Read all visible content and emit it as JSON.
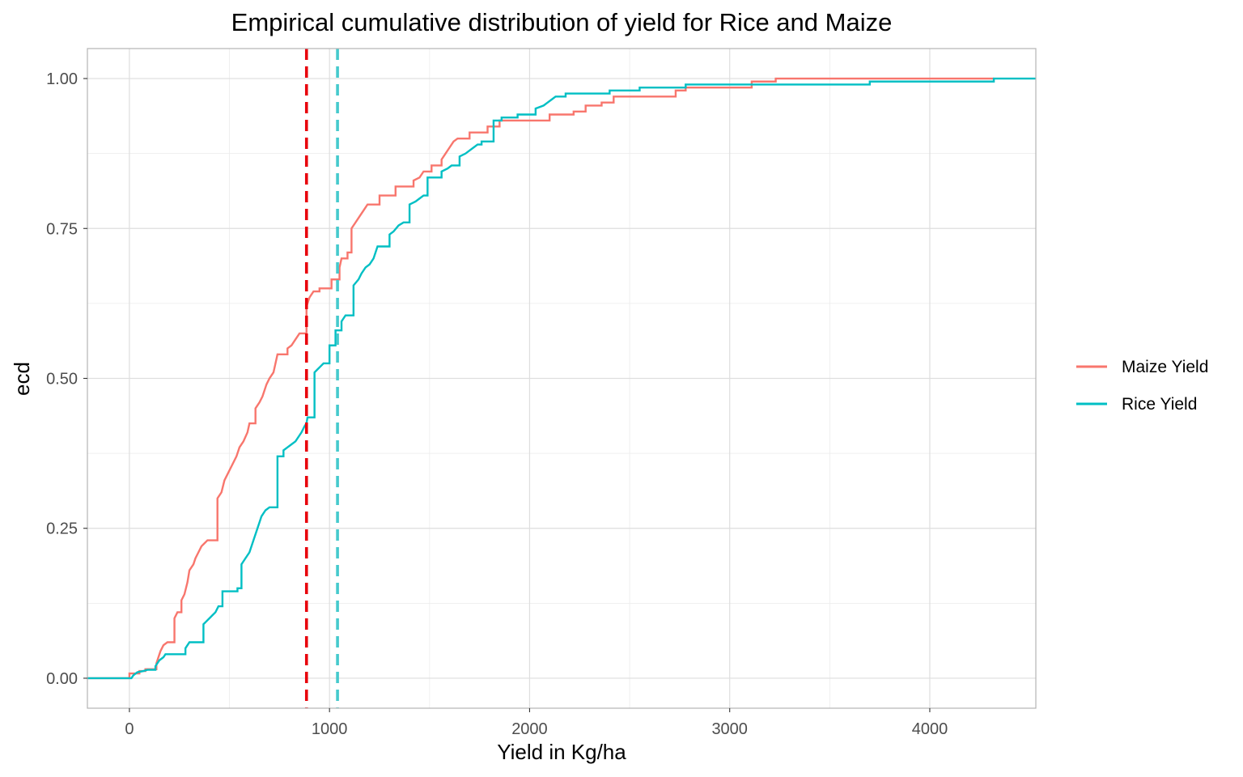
{
  "chart_data": {
    "type": "line",
    "subtype": "ecdf-step",
    "title": "Empirical cumulative distribution of yield for Rice and Maize",
    "xlabel": "Yield in Kg/ha",
    "ylabel": "ecd",
    "xlim": [
      -210,
      4530
    ],
    "ylim": [
      -0.05,
      1.05
    ],
    "x_ticks": [
      0,
      1000,
      2000,
      3000,
      4000
    ],
    "x_tick_labels": [
      "0",
      "1000",
      "2000",
      "3000",
      "4000"
    ],
    "y_ticks": [
      0,
      0.25,
      0.5,
      0.75,
      1.0
    ],
    "y_tick_labels": [
      "0.00",
      "0.25",
      "0.50",
      "0.75",
      "1.00"
    ],
    "grid": true,
    "legend_position": "right",
    "series": [
      {
        "name": "Maize Yield",
        "color": "#F8766D",
        "points": [
          [
            -210,
            0
          ],
          [
            0,
            0
          ],
          [
            0,
            0.008
          ],
          [
            50,
            0.008
          ],
          [
            50,
            0.012
          ],
          [
            80,
            0.012
          ],
          [
            80,
            0.015
          ],
          [
            135,
            0.015
          ],
          [
            135,
            0.025
          ],
          [
            145,
            0.035
          ],
          [
            155,
            0.045
          ],
          [
            170,
            0.055
          ],
          [
            190,
            0.06
          ],
          [
            225,
            0.06
          ],
          [
            225,
            0.1
          ],
          [
            240,
            0.11
          ],
          [
            260,
            0.11
          ],
          [
            260,
            0.13
          ],
          [
            275,
            0.14
          ],
          [
            290,
            0.16
          ],
          [
            300,
            0.18
          ],
          [
            320,
            0.19
          ],
          [
            330,
            0.2
          ],
          [
            345,
            0.21
          ],
          [
            360,
            0.22
          ],
          [
            375,
            0.225
          ],
          [
            390,
            0.23
          ],
          [
            440,
            0.23
          ],
          [
            440,
            0.3
          ],
          [
            460,
            0.31
          ],
          [
            475,
            0.33
          ],
          [
            490,
            0.34
          ],
          [
            505,
            0.35
          ],
          [
            520,
            0.36
          ],
          [
            535,
            0.37
          ],
          [
            550,
            0.385
          ],
          [
            570,
            0.395
          ],
          [
            590,
            0.41
          ],
          [
            600,
            0.425
          ],
          [
            630,
            0.425
          ],
          [
            630,
            0.45
          ],
          [
            650,
            0.46
          ],
          [
            665,
            0.47
          ],
          [
            685,
            0.49
          ],
          [
            700,
            0.5
          ],
          [
            720,
            0.51
          ],
          [
            730,
            0.525
          ],
          [
            740,
            0.54
          ],
          [
            790,
            0.54
          ],
          [
            790,
            0.55
          ],
          [
            810,
            0.555
          ],
          [
            830,
            0.565
          ],
          [
            850,
            0.575
          ],
          [
            885,
            0.575
          ],
          [
            885,
            0.62
          ],
          [
            900,
            0.635
          ],
          [
            920,
            0.645
          ],
          [
            950,
            0.645
          ],
          [
            950,
            0.65
          ],
          [
            1010,
            0.65
          ],
          [
            1010,
            0.665
          ],
          [
            1050,
            0.665
          ],
          [
            1050,
            0.685
          ],
          [
            1060,
            0.7
          ],
          [
            1090,
            0.7
          ],
          [
            1090,
            0.71
          ],
          [
            1110,
            0.71
          ],
          [
            1110,
            0.75
          ],
          [
            1130,
            0.76
          ],
          [
            1150,
            0.77
          ],
          [
            1170,
            0.78
          ],
          [
            1190,
            0.79
          ],
          [
            1250,
            0.79
          ],
          [
            1250,
            0.805
          ],
          [
            1330,
            0.805
          ],
          [
            1330,
            0.82
          ],
          [
            1420,
            0.82
          ],
          [
            1420,
            0.83
          ],
          [
            1450,
            0.835
          ],
          [
            1470,
            0.845
          ],
          [
            1510,
            0.845
          ],
          [
            1510,
            0.855
          ],
          [
            1560,
            0.855
          ],
          [
            1560,
            0.865
          ],
          [
            1580,
            0.875
          ],
          [
            1600,
            0.885
          ],
          [
            1620,
            0.895
          ],
          [
            1640,
            0.9
          ],
          [
            1700,
            0.9
          ],
          [
            1700,
            0.91
          ],
          [
            1790,
            0.91
          ],
          [
            1790,
            0.92
          ],
          [
            1850,
            0.92
          ],
          [
            1850,
            0.93
          ],
          [
            2100,
            0.93
          ],
          [
            2100,
            0.94
          ],
          [
            2220,
            0.94
          ],
          [
            2220,
            0.945
          ],
          [
            2280,
            0.945
          ],
          [
            2280,
            0.955
          ],
          [
            2360,
            0.955
          ],
          [
            2360,
            0.96
          ],
          [
            2420,
            0.96
          ],
          [
            2420,
            0.97
          ],
          [
            2730,
            0.97
          ],
          [
            2730,
            0.98
          ],
          [
            2780,
            0.98
          ],
          [
            2780,
            0.985
          ],
          [
            3110,
            0.985
          ],
          [
            3110,
            0.995
          ],
          [
            3230,
            0.995
          ],
          [
            3230,
            1.0
          ],
          [
            4320,
            1.0
          ]
        ]
      },
      {
        "name": "Rice Yield",
        "color": "#00BFC4",
        "points": [
          [
            -210,
            0
          ],
          [
            10,
            0
          ],
          [
            20,
            0.005
          ],
          [
            40,
            0.01
          ],
          [
            70,
            0.012
          ],
          [
            90,
            0.014
          ],
          [
            130,
            0.014
          ],
          [
            130,
            0.02
          ],
          [
            150,
            0.03
          ],
          [
            170,
            0.035
          ],
          [
            180,
            0.04
          ],
          [
            280,
            0.04
          ],
          [
            280,
            0.05
          ],
          [
            300,
            0.06
          ],
          [
            370,
            0.06
          ],
          [
            370,
            0.09
          ],
          [
            385,
            0.095
          ],
          [
            400,
            0.1
          ],
          [
            415,
            0.105
          ],
          [
            430,
            0.11
          ],
          [
            445,
            0.12
          ],
          [
            465,
            0.12
          ],
          [
            465,
            0.145
          ],
          [
            540,
            0.145
          ],
          [
            540,
            0.15
          ],
          [
            560,
            0.15
          ],
          [
            560,
            0.19
          ],
          [
            580,
            0.2
          ],
          [
            600,
            0.21
          ],
          [
            620,
            0.23
          ],
          [
            630,
            0.24
          ],
          [
            650,
            0.26
          ],
          [
            660,
            0.27
          ],
          [
            680,
            0.28
          ],
          [
            700,
            0.285
          ],
          [
            740,
            0.285
          ],
          [
            740,
            0.37
          ],
          [
            770,
            0.37
          ],
          [
            770,
            0.38
          ],
          [
            790,
            0.385
          ],
          [
            810,
            0.39
          ],
          [
            830,
            0.395
          ],
          [
            850,
            0.405
          ],
          [
            860,
            0.41
          ],
          [
            875,
            0.42
          ],
          [
            885,
            0.425
          ],
          [
            890,
            0.435
          ],
          [
            925,
            0.435
          ],
          [
            925,
            0.51
          ],
          [
            940,
            0.515
          ],
          [
            955,
            0.52
          ],
          [
            970,
            0.525
          ],
          [
            1000,
            0.525
          ],
          [
            1000,
            0.555
          ],
          [
            1030,
            0.555
          ],
          [
            1030,
            0.58
          ],
          [
            1060,
            0.58
          ],
          [
            1060,
            0.595
          ],
          [
            1080,
            0.605
          ],
          [
            1120,
            0.605
          ],
          [
            1120,
            0.655
          ],
          [
            1145,
            0.665
          ],
          [
            1160,
            0.675
          ],
          [
            1180,
            0.685
          ],
          [
            1200,
            0.69
          ],
          [
            1220,
            0.7
          ],
          [
            1240,
            0.72
          ],
          [
            1300,
            0.72
          ],
          [
            1300,
            0.74
          ],
          [
            1320,
            0.745
          ],
          [
            1345,
            0.755
          ],
          [
            1370,
            0.76
          ],
          [
            1400,
            0.76
          ],
          [
            1400,
            0.79
          ],
          [
            1430,
            0.795
          ],
          [
            1450,
            0.8
          ],
          [
            1470,
            0.805
          ],
          [
            1490,
            0.805
          ],
          [
            1490,
            0.835
          ],
          [
            1560,
            0.835
          ],
          [
            1560,
            0.845
          ],
          [
            1590,
            0.85
          ],
          [
            1610,
            0.855
          ],
          [
            1650,
            0.855
          ],
          [
            1650,
            0.87
          ],
          [
            1680,
            0.875
          ],
          [
            1700,
            0.88
          ],
          [
            1720,
            0.885
          ],
          [
            1740,
            0.89
          ],
          [
            1760,
            0.89
          ],
          [
            1760,
            0.895
          ],
          [
            1820,
            0.895
          ],
          [
            1820,
            0.93
          ],
          [
            1860,
            0.93
          ],
          [
            1860,
            0.935
          ],
          [
            1940,
            0.935
          ],
          [
            1940,
            0.94
          ],
          [
            2030,
            0.94
          ],
          [
            2030,
            0.95
          ],
          [
            2070,
            0.955
          ],
          [
            2090,
            0.96
          ],
          [
            2110,
            0.965
          ],
          [
            2130,
            0.97
          ],
          [
            2180,
            0.97
          ],
          [
            2180,
            0.975
          ],
          [
            2400,
            0.975
          ],
          [
            2400,
            0.98
          ],
          [
            2550,
            0.98
          ],
          [
            2550,
            0.985
          ],
          [
            2780,
            0.985
          ],
          [
            2780,
            0.99
          ],
          [
            3700,
            0.99
          ],
          [
            3700,
            0.995
          ],
          [
            4320,
            0.995
          ],
          [
            4320,
            1.0
          ],
          [
            4530,
            1.0
          ]
        ]
      }
    ],
    "vlines": [
      {
        "x": 885,
        "color": "#E8000B",
        "style": "dashed"
      },
      {
        "x": 1040,
        "color": "#45CACD",
        "style": "dashed"
      }
    ]
  }
}
